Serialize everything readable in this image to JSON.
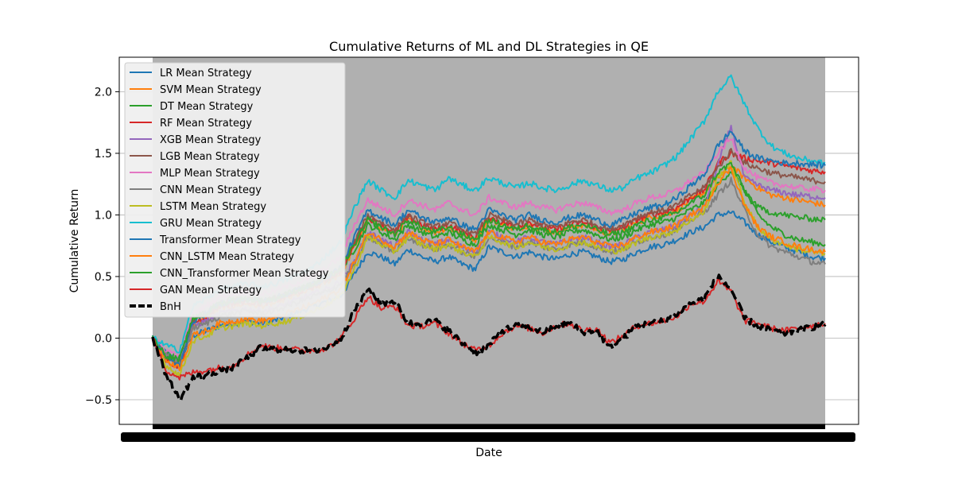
{
  "chart_data": {
    "type": "line",
    "title": "Cumulative Returns of ML and DL Strategies in QE",
    "xlabel": "Date",
    "ylabel": "Cumulative Return",
    "ylim": [
      -0.7,
      2.28
    ],
    "yticks": [
      -0.5,
      0.0,
      0.5,
      1.0,
      1.5,
      2.0
    ],
    "ytick_labels": [
      "−0.5",
      "0.0",
      "0.5",
      "1.0",
      "1.5",
      "2.0"
    ],
    "x_tick_labels": "unreadable (dense overlapping date ticks)",
    "grid": "horizontal",
    "legend_position": "top-left",
    "x": [
      0,
      0.02,
      0.04,
      0.06,
      0.08,
      0.1,
      0.12,
      0.14,
      0.16,
      0.18,
      0.2,
      0.22,
      0.24,
      0.26,
      0.28,
      0.3,
      0.32,
      0.34,
      0.36,
      0.38,
      0.4,
      0.42,
      0.44,
      0.46,
      0.48,
      0.5,
      0.52,
      0.54,
      0.56,
      0.58,
      0.6,
      0.62,
      0.64,
      0.66,
      0.68,
      0.7,
      0.72,
      0.74,
      0.76,
      0.78,
      0.8,
      0.82,
      0.84,
      0.86,
      0.88,
      0.9,
      0.92,
      0.94,
      0.96,
      0.98,
      1.0
    ],
    "series": [
      {
        "name": "LR Mean Strategy",
        "color": "#1f77b4",
        "dash": false,
        "values": [
          0.0,
          -0.12,
          -0.18,
          0.02,
          0.06,
          0.1,
          0.12,
          0.14,
          0.12,
          0.14,
          0.18,
          0.22,
          0.26,
          0.3,
          0.34,
          0.52,
          0.7,
          0.66,
          0.6,
          0.72,
          0.66,
          0.62,
          0.66,
          0.6,
          0.56,
          0.74,
          0.7,
          0.66,
          0.7,
          0.66,
          0.64,
          0.68,
          0.7,
          0.66,
          0.62,
          0.64,
          0.7,
          0.74,
          0.76,
          0.8,
          0.86,
          0.9,
          1.0,
          1.02,
          0.94,
          0.84,
          0.78,
          0.74,
          0.7,
          0.66,
          0.65
        ]
      },
      {
        "name": "SVM Mean Strategy",
        "color": "#ff7f0e",
        "dash": false,
        "values": [
          0.0,
          -0.16,
          -0.2,
          0.1,
          0.16,
          0.24,
          0.26,
          0.28,
          0.26,
          0.28,
          0.32,
          0.36,
          0.4,
          0.46,
          0.52,
          0.74,
          0.96,
          0.9,
          0.84,
          0.96,
          0.9,
          0.86,
          0.9,
          0.84,
          0.8,
          0.96,
          0.92,
          0.88,
          0.92,
          0.88,
          0.86,
          0.9,
          0.92,
          0.88,
          0.84,
          0.88,
          0.94,
          0.98,
          1.0,
          1.04,
          1.12,
          1.18,
          1.3,
          1.4,
          1.3,
          1.22,
          1.16,
          1.14,
          1.12,
          1.1,
          1.08
        ]
      },
      {
        "name": "DT Mean Strategy",
        "color": "#2ca02c",
        "dash": false,
        "values": [
          0.0,
          -0.12,
          -0.16,
          0.18,
          0.22,
          0.3,
          0.32,
          0.32,
          0.3,
          0.32,
          0.36,
          0.4,
          0.44,
          0.48,
          0.54,
          0.72,
          0.92,
          0.86,
          0.8,
          0.92,
          0.86,
          0.82,
          0.86,
          0.8,
          0.76,
          0.92,
          0.88,
          0.84,
          0.88,
          0.84,
          0.82,
          0.86,
          0.88,
          0.84,
          0.8,
          0.82,
          0.88,
          0.92,
          0.94,
          0.98,
          1.04,
          1.1,
          1.24,
          1.36,
          1.2,
          1.0,
          0.9,
          0.84,
          0.8,
          0.78,
          0.76
        ]
      },
      {
        "name": "RF Mean Strategy",
        "color": "#d62728",
        "dash": false,
        "values": [
          0.0,
          -0.18,
          -0.24,
          0.12,
          0.18,
          0.26,
          0.28,
          0.3,
          0.28,
          0.3,
          0.34,
          0.38,
          0.42,
          0.48,
          0.54,
          0.76,
          0.98,
          0.92,
          0.86,
          0.98,
          0.92,
          0.88,
          0.92,
          0.86,
          0.82,
          0.98,
          0.94,
          0.9,
          0.94,
          0.9,
          0.88,
          0.92,
          0.94,
          0.9,
          0.86,
          0.9,
          0.96,
          1.0,
          1.02,
          1.06,
          1.14,
          1.2,
          1.42,
          1.5,
          1.46,
          1.44,
          1.42,
          1.4,
          1.38,
          1.36,
          1.35
        ]
      },
      {
        "name": "XGB Mean Strategy",
        "color": "#9467bd",
        "dash": false,
        "values": [
          0.0,
          -0.14,
          -0.18,
          0.1,
          0.14,
          0.2,
          0.22,
          0.24,
          0.22,
          0.24,
          0.28,
          0.32,
          0.36,
          0.4,
          0.46,
          0.62,
          0.86,
          0.8,
          0.74,
          0.86,
          0.8,
          0.76,
          0.8,
          0.74,
          0.7,
          0.86,
          0.82,
          0.78,
          0.82,
          0.78,
          0.76,
          0.8,
          0.82,
          0.78,
          0.74,
          0.76,
          0.82,
          0.86,
          0.88,
          0.92,
          1.0,
          1.06,
          1.4,
          1.72,
          1.3,
          1.24,
          1.2,
          1.18,
          1.16,
          1.15,
          1.14
        ]
      },
      {
        "name": "LGB Mean Strategy",
        "color": "#8c564b",
        "dash": false,
        "values": [
          0.0,
          -0.16,
          -0.22,
          0.14,
          0.2,
          0.28,
          0.3,
          0.32,
          0.3,
          0.32,
          0.36,
          0.4,
          0.44,
          0.5,
          0.56,
          0.78,
          1.0,
          0.94,
          0.88,
          1.0,
          0.94,
          0.9,
          0.94,
          0.88,
          0.84,
          1.0,
          0.96,
          0.92,
          0.96,
          0.92,
          0.9,
          0.94,
          0.96,
          0.92,
          0.88,
          0.92,
          0.98,
          1.02,
          1.04,
          1.08,
          1.16,
          1.22,
          1.38,
          1.52,
          1.42,
          1.38,
          1.34,
          1.32,
          1.3,
          1.28,
          1.27
        ]
      },
      {
        "name": "MLP Mean Strategy",
        "color": "#e377c2",
        "dash": false,
        "values": [
          0.0,
          -0.1,
          -0.14,
          0.2,
          0.26,
          0.34,
          0.36,
          0.38,
          0.36,
          0.38,
          0.42,
          0.46,
          0.5,
          0.58,
          0.66,
          0.92,
          1.12,
          1.06,
          1.0,
          1.12,
          1.08,
          1.04,
          1.1,
          1.04,
          1.0,
          1.14,
          1.1,
          1.06,
          1.1,
          1.06,
          1.04,
          1.08,
          1.1,
          1.06,
          1.02,
          1.04,
          1.1,
          1.14,
          1.16,
          1.2,
          1.28,
          1.34,
          1.5,
          1.62,
          1.38,
          1.3,
          1.26,
          1.24,
          1.22,
          1.21,
          1.2
        ]
      },
      {
        "name": "CNN Mean Strategy",
        "color": "#7f7f7f",
        "dash": false,
        "values": [
          0.0,
          -0.14,
          -0.2,
          0.08,
          0.12,
          0.18,
          0.2,
          0.22,
          0.2,
          0.22,
          0.26,
          0.3,
          0.34,
          0.38,
          0.44,
          0.6,
          0.82,
          0.76,
          0.7,
          0.82,
          0.76,
          0.72,
          0.76,
          0.7,
          0.66,
          0.82,
          0.78,
          0.74,
          0.78,
          0.74,
          0.72,
          0.76,
          0.78,
          0.74,
          0.7,
          0.72,
          0.78,
          0.82,
          0.84,
          0.88,
          0.96,
          1.02,
          1.16,
          1.28,
          1.04,
          0.84,
          0.74,
          0.7,
          0.66,
          0.62,
          0.6
        ]
      },
      {
        "name": "LSTM Mean Strategy",
        "color": "#bcbd22",
        "dash": false,
        "values": [
          0.0,
          -0.22,
          -0.3,
          -0.02,
          0.02,
          0.08,
          0.1,
          0.12,
          0.1,
          0.12,
          0.14,
          0.18,
          0.22,
          0.28,
          0.34,
          0.56,
          0.82,
          0.76,
          0.7,
          0.82,
          0.76,
          0.72,
          0.76,
          0.7,
          0.66,
          0.82,
          0.78,
          0.74,
          0.78,
          0.74,
          0.72,
          0.76,
          0.78,
          0.74,
          0.7,
          0.72,
          0.78,
          0.82,
          0.84,
          0.88,
          0.96,
          1.02,
          1.3,
          1.42,
          1.1,
          0.9,
          0.8,
          0.76,
          0.72,
          0.7,
          0.68
        ]
      },
      {
        "name": "GRU Mean Strategy",
        "color": "#17becf",
        "dash": false,
        "values": [
          0.0,
          -0.06,
          -0.1,
          0.26,
          0.32,
          0.4,
          0.42,
          0.44,
          0.42,
          0.44,
          0.48,
          0.52,
          0.58,
          0.68,
          0.78,
          1.06,
          1.28,
          1.2,
          1.14,
          1.28,
          1.24,
          1.2,
          1.3,
          1.24,
          1.2,
          1.3,
          1.26,
          1.22,
          1.26,
          1.22,
          1.2,
          1.24,
          1.28,
          1.24,
          1.2,
          1.22,
          1.3,
          1.34,
          1.4,
          1.48,
          1.62,
          1.76,
          2.0,
          2.12,
          1.9,
          1.7,
          1.56,
          1.5,
          1.46,
          1.44,
          1.42
        ]
      },
      {
        "name": "Transformer Mean Strategy",
        "color": "#1f77b4",
        "dash": false,
        "values": [
          0.0,
          -0.16,
          -0.22,
          0.14,
          0.2,
          0.28,
          0.3,
          0.32,
          0.3,
          0.32,
          0.36,
          0.4,
          0.44,
          0.5,
          0.58,
          0.82,
          1.04,
          0.98,
          0.92,
          1.04,
          0.98,
          0.94,
          0.98,
          0.92,
          0.88,
          1.04,
          1.0,
          0.96,
          1.0,
          0.96,
          0.94,
          0.98,
          1.0,
          0.96,
          0.92,
          0.96,
          1.02,
          1.06,
          1.08,
          1.14,
          1.24,
          1.32,
          1.56,
          1.68,
          1.52,
          1.46,
          1.44,
          1.42,
          1.42,
          1.41,
          1.4
        ]
      },
      {
        "name": "CNN_LSTM Mean Strategy",
        "color": "#ff7f0e",
        "dash": false,
        "values": [
          0.0,
          -0.18,
          -0.24,
          0.02,
          0.06,
          0.12,
          0.14,
          0.16,
          0.14,
          0.16,
          0.2,
          0.24,
          0.28,
          0.34,
          0.4,
          0.62,
          0.86,
          0.8,
          0.74,
          0.86,
          0.8,
          0.76,
          0.8,
          0.74,
          0.7,
          0.86,
          0.82,
          0.78,
          0.82,
          0.78,
          0.76,
          0.8,
          0.82,
          0.78,
          0.74,
          0.76,
          0.82,
          0.86,
          0.88,
          0.92,
          1.0,
          1.06,
          1.26,
          1.38,
          1.08,
          0.9,
          0.82,
          0.78,
          0.74,
          0.72,
          0.7
        ]
      },
      {
        "name": "CNN_Transformer Mean Strategy",
        "color": "#2ca02c",
        "dash": false,
        "values": [
          0.0,
          -0.14,
          -0.18,
          0.16,
          0.2,
          0.28,
          0.3,
          0.32,
          0.3,
          0.32,
          0.36,
          0.4,
          0.44,
          0.5,
          0.56,
          0.76,
          0.96,
          0.9,
          0.84,
          0.96,
          0.9,
          0.86,
          0.9,
          0.84,
          0.8,
          0.96,
          0.92,
          0.88,
          0.92,
          0.88,
          0.86,
          0.9,
          0.92,
          0.88,
          0.84,
          0.86,
          0.92,
          0.96,
          0.98,
          1.02,
          1.1,
          1.16,
          1.34,
          1.42,
          1.2,
          1.06,
          1.02,
          1.0,
          0.98,
          0.97,
          0.96
        ]
      },
      {
        "name": "GAN Mean Strategy",
        "color": "#d62728",
        "dash": false,
        "values": [
          0.0,
          -0.26,
          -0.32,
          -0.28,
          -0.26,
          -0.24,
          -0.22,
          -0.14,
          -0.06,
          -0.08,
          -0.08,
          -0.1,
          -0.1,
          -0.08,
          0.0,
          0.16,
          0.34,
          0.24,
          0.26,
          0.1,
          0.1,
          0.12,
          0.04,
          -0.04,
          -0.1,
          -0.06,
          0.04,
          0.1,
          0.08,
          0.04,
          0.1,
          0.12,
          0.06,
          0.08,
          -0.04,
          0.02,
          0.1,
          0.12,
          0.14,
          0.18,
          0.28,
          0.3,
          0.46,
          0.38,
          0.14,
          0.12,
          0.08,
          0.06,
          0.08,
          0.1,
          0.12
        ]
      },
      {
        "name": "BnH",
        "color": "#000000",
        "dash": true,
        "values": [
          0.0,
          -0.3,
          -0.5,
          -0.32,
          -0.3,
          -0.26,
          -0.24,
          -0.16,
          -0.08,
          -0.09,
          -0.09,
          -0.1,
          -0.1,
          -0.08,
          0.0,
          0.22,
          0.4,
          0.28,
          0.3,
          0.12,
          0.12,
          0.14,
          0.06,
          -0.04,
          -0.12,
          -0.06,
          0.06,
          0.1,
          0.08,
          0.05,
          0.1,
          0.12,
          0.05,
          0.06,
          -0.08,
          0.0,
          0.1,
          0.12,
          0.14,
          0.2,
          0.28,
          0.32,
          0.5,
          0.4,
          0.16,
          0.1,
          0.06,
          0.04,
          0.06,
          0.09,
          0.11
        ]
      }
    ]
  }
}
